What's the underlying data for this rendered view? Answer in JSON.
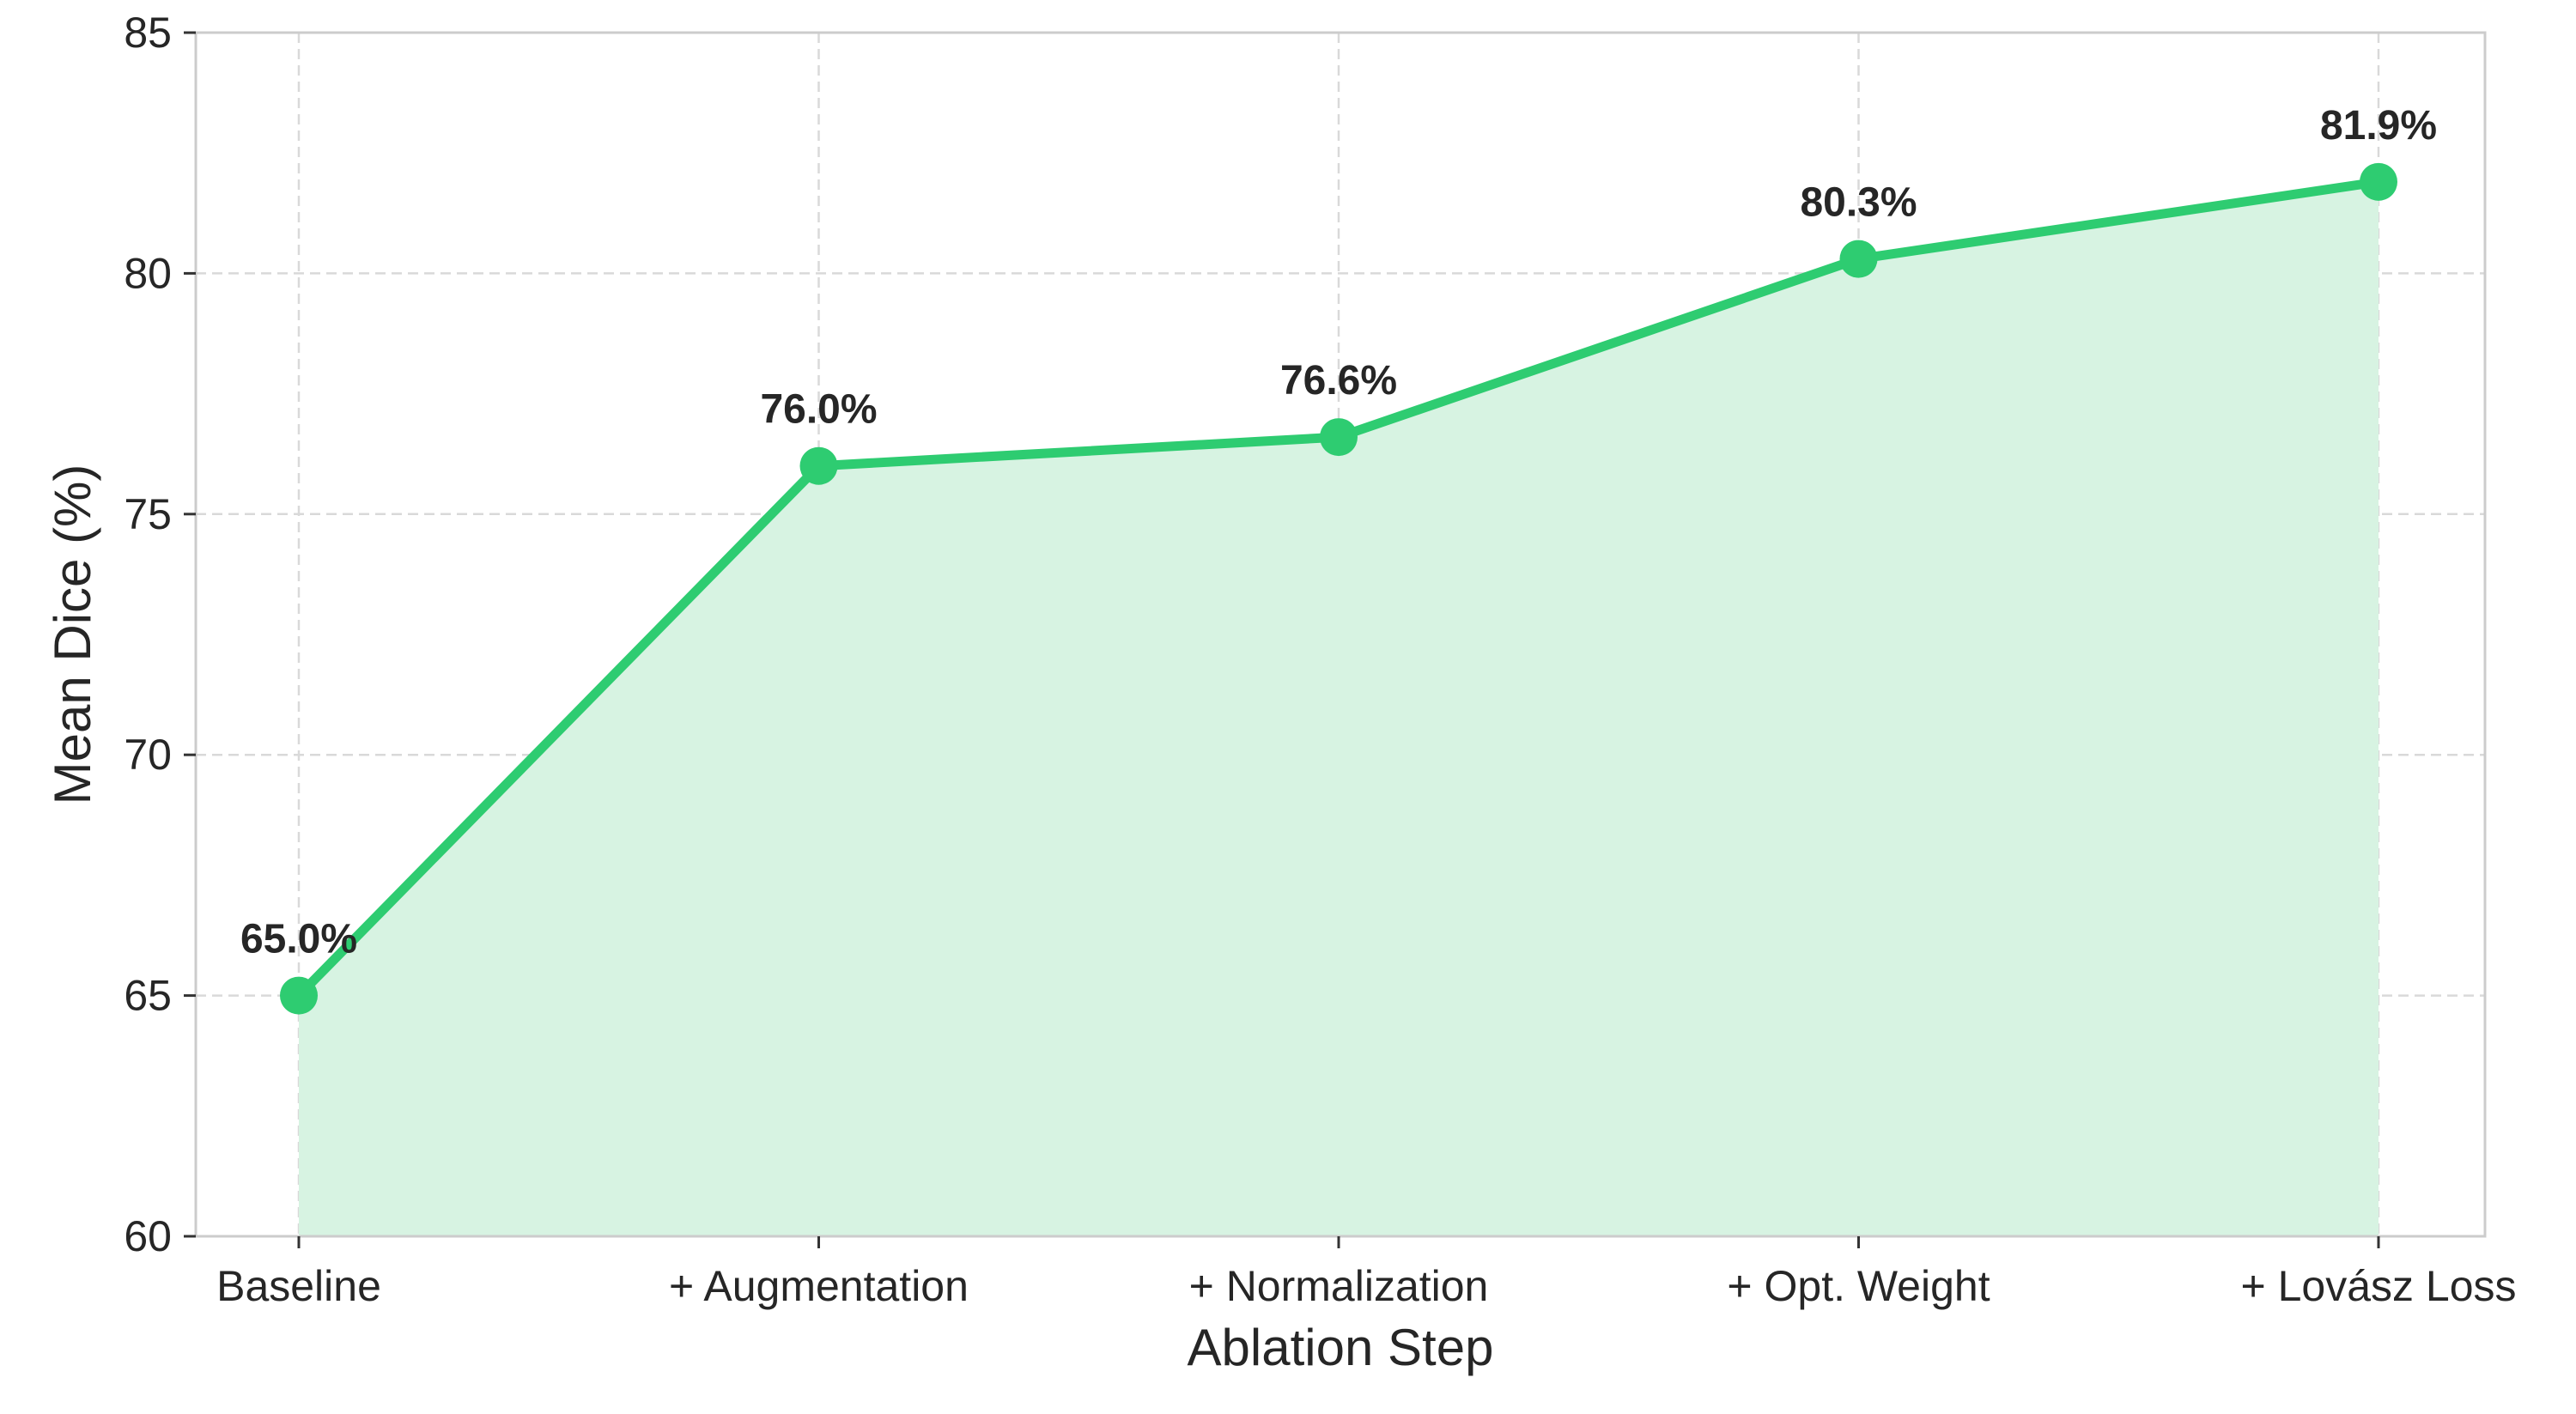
{
  "chart_data": {
    "type": "line",
    "categories": [
      "Baseline",
      "+ Augmentation",
      "+ Normalization",
      "+ Opt. Weight",
      "+ Lovász Loss"
    ],
    "series": [
      {
        "values": [
          65.0,
          76.0,
          76.6,
          80.3,
          81.9
        ]
      }
    ],
    "data_labels": [
      "65.0%",
      "76.0%",
      "76.6%",
      "80.3%",
      "81.9%"
    ],
    "title": "",
    "xlabel": "Ablation Step",
    "ylabel": "Mean Dice (%)",
    "ylim": [
      60,
      85
    ],
    "yticks": [
      60,
      65,
      70,
      75,
      80,
      85
    ],
    "grid": true,
    "fill_under_line": true,
    "colors": {
      "line": "#2ecc71",
      "fill": "#d7f3e2",
      "grid": "#d9d9d9",
      "spine": "#cccccc",
      "text": "#262626"
    }
  }
}
